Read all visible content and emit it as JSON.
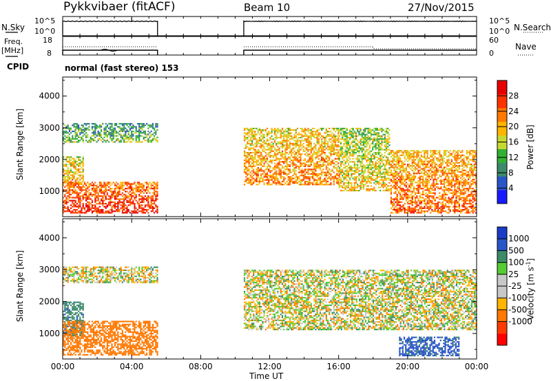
{
  "header": {
    "station": "Pykkvibaer (fitACF)",
    "beam": "Beam 10",
    "date": "27/Nov/2015"
  },
  "top_panels": {
    "nsky_label": "N.Sky",
    "nsearch_label": "N.Search",
    "nsky_ticks": [
      "10^5",
      "10^0"
    ],
    "nsearch_ticks": [
      "10^5",
      "10^0"
    ],
    "freq_label": "Freq.",
    "freq_unit": "[MHz]",
    "freq_ticks": [
      "18",
      "8"
    ],
    "nave_label": "Nave",
    "nave_ticks": [
      "60",
      "0"
    ],
    "cpid_label": "CPID",
    "cpid_text": "normal (fast stereo) 153"
  },
  "colors": {
    "power_scale": [
      "#1a1aff",
      "#2a55c8",
      "#3d8a6a",
      "#33b033",
      "#c8d832",
      "#ffb400",
      "#ff7800",
      "#ff3300",
      "#e60000"
    ],
    "velocity_scale": [
      "#ff0000",
      "#ff3c00",
      "#ff7800",
      "#ffb400",
      "#c8c8c8",
      "#c8c8c8",
      "#55cc33",
      "#3d8a6a",
      "#2a55c8",
      "#1a3cc8"
    ]
  },
  "chart_data": [
    {
      "type": "heatmap",
      "panel": "power",
      "ylabel": "Slant Range [km]",
      "ylim": [
        200,
        4600
      ],
      "y_ticks": [
        "4000",
        "3000",
        "2000",
        "1000"
      ],
      "colorbar_label": "Power [dB]",
      "colorbar_ticks": [
        "28",
        "24",
        "20",
        "16",
        "12",
        "8",
        "4"
      ],
      "colorbar_range": [
        0,
        32
      ],
      "regions": [
        {
          "t0": 0.0,
          "t1": 5.5,
          "r0": 2550,
          "r1": 3150,
          "level": 8
        },
        {
          "t0": 0.0,
          "t1": 1.2,
          "r0": 1200,
          "r1": 2100,
          "level": 16
        },
        {
          "t0": 0.0,
          "t1": 5.5,
          "r0": 300,
          "r1": 1300,
          "level": 24
        },
        {
          "t0": 10.5,
          "t1": 16.0,
          "r0": 1200,
          "r1": 3000,
          "level": 18
        },
        {
          "t0": 16.0,
          "t1": 19.0,
          "r0": 1000,
          "r1": 3000,
          "level": 14
        },
        {
          "t0": 19.0,
          "t1": 24.0,
          "r0": 300,
          "r1": 2300,
          "level": 20
        }
      ]
    },
    {
      "type": "heatmap",
      "panel": "velocity",
      "ylabel": "Slant Range [km]",
      "ylim": [
        200,
        4600
      ],
      "y_ticks": [
        "4000",
        "3000",
        "2000",
        "1000"
      ],
      "colorbar_label": "Velocity [m s^-1]",
      "colorbar_ticks": [
        "1000",
        "500",
        "100",
        "25",
        "-25",
        "-100",
        "-500",
        "-1000"
      ],
      "regions": [
        {
          "t0": 0.0,
          "t1": 5.5,
          "r0": 2600,
          "r1": 3100,
          "level": 0
        },
        {
          "t0": 0.0,
          "t1": 1.2,
          "r0": 900,
          "r1": 2000,
          "level": 400
        },
        {
          "t0": 0.0,
          "t1": 5.5,
          "r0": 300,
          "r1": 1400,
          "level": -300
        },
        {
          "t0": 10.5,
          "t1": 24.0,
          "r0": 1100,
          "r1": 3000,
          "level": 0
        },
        {
          "t0": 19.5,
          "t1": 23.0,
          "r0": 300,
          "r1": 900,
          "level": 600
        }
      ]
    }
  ],
  "x_axis": {
    "label": "Time UT",
    "ticks": [
      "00:00",
      "04:00",
      "08:00",
      "12:00",
      "16:00",
      "20:00",
      "00:00"
    ]
  }
}
